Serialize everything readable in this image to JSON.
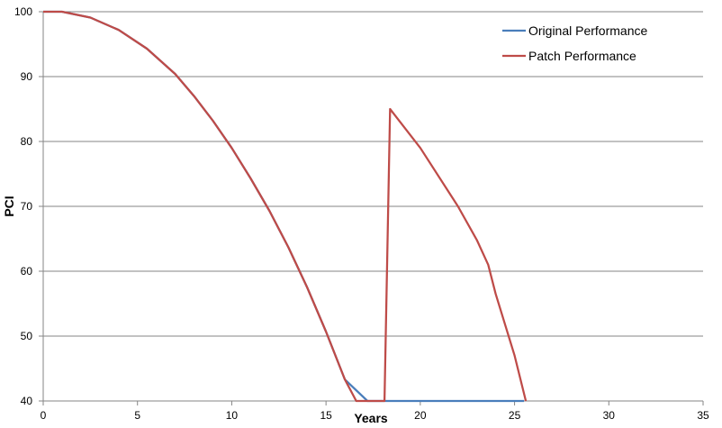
{
  "chart_data": {
    "type": "line",
    "title": "",
    "xlabel": "Years",
    "ylabel": "PCI",
    "xlim": [
      0,
      35
    ],
    "ylim": [
      40,
      100
    ],
    "xticks": [
      0,
      5,
      10,
      15,
      20,
      25,
      30,
      35
    ],
    "yticks": [
      40,
      50,
      60,
      70,
      80,
      90,
      100
    ],
    "grid": "horizontal",
    "legend_position": "top-right",
    "series": [
      {
        "name": "Original Performance",
        "color": "#4a7ebb",
        "points": [
          [
            0,
            100
          ],
          [
            1,
            100
          ],
          [
            2.5,
            99.1
          ],
          [
            4,
            97.2
          ],
          [
            5.5,
            94.3
          ],
          [
            7,
            90.4
          ],
          [
            8,
            87
          ],
          [
            9,
            83.2
          ],
          [
            10,
            79
          ],
          [
            11,
            74.3
          ],
          [
            12,
            69.3
          ],
          [
            13,
            63.7
          ],
          [
            14,
            57.5
          ],
          [
            15,
            50.7
          ],
          [
            16,
            43.3
          ],
          [
            17.2,
            40
          ],
          [
            25.5,
            40
          ]
        ]
      },
      {
        "name": "Patch Performance",
        "color": "#be4b48",
        "points": [
          [
            0,
            100
          ],
          [
            1,
            100
          ],
          [
            2.5,
            99.1
          ],
          [
            4,
            97.2
          ],
          [
            5.5,
            94.3
          ],
          [
            7,
            90.4
          ],
          [
            8,
            87
          ],
          [
            9,
            83.2
          ],
          [
            10,
            79
          ],
          [
            11,
            74.3
          ],
          [
            12,
            69.3
          ],
          [
            13,
            63.7
          ],
          [
            14,
            57.5
          ],
          [
            15,
            50.7
          ],
          [
            16,
            43.3
          ],
          [
            16.6,
            40
          ],
          [
            18.1,
            40
          ],
          [
            18.4,
            85
          ],
          [
            20,
            79
          ],
          [
            22,
            70
          ],
          [
            23,
            64.8
          ],
          [
            23.6,
            61
          ],
          [
            24,
            56.5
          ],
          [
            25,
            47
          ],
          [
            25.6,
            40
          ]
        ]
      }
    ]
  }
}
